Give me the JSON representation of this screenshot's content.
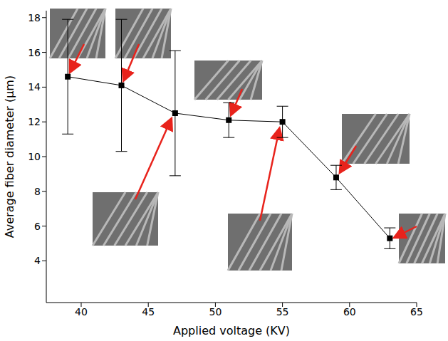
{
  "chart_data": {
    "type": "line",
    "x": [
      39,
      43,
      47,
      51,
      55,
      59,
      63
    ],
    "values": [
      14.6,
      14.1,
      12.5,
      12.1,
      12.0,
      8.8,
      5.3
    ],
    "errors": [
      3.3,
      3.8,
      3.6,
      1.0,
      0.9,
      0.7,
      0.6
    ],
    "color": "#000000",
    "marker": "square",
    "xlabel": "Applied voltage (KV)",
    "ylabel": "Average fiber diameter (μm)",
    "xlim": [
      37.4,
      65
    ],
    "ylim": [
      1.6,
      18.4
    ],
    "xticks": [
      40,
      45,
      50,
      55,
      60,
      65
    ],
    "yticks": [
      4,
      6,
      8,
      10,
      12,
      14,
      16,
      18
    ],
    "grid": false
  }
}
